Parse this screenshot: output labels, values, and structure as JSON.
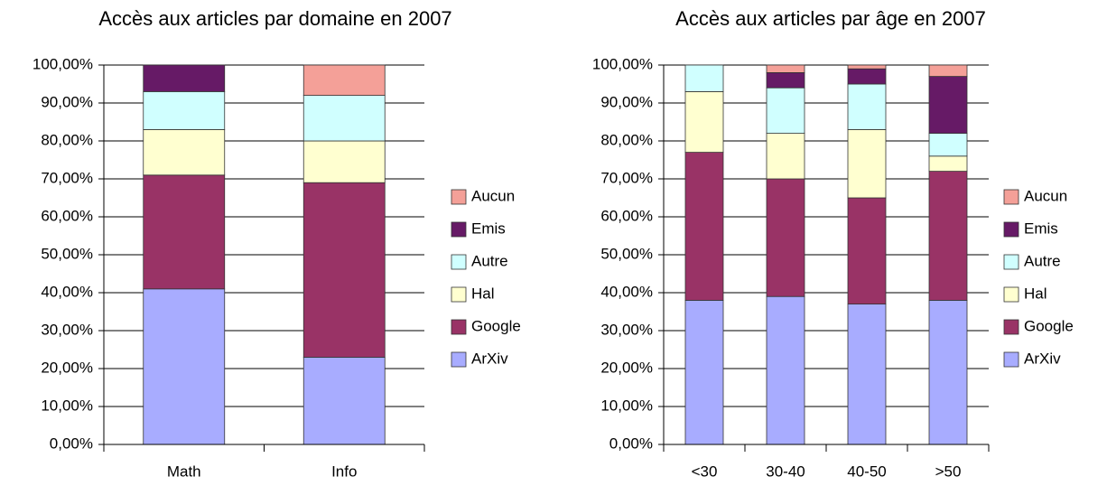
{
  "chart_data": [
    {
      "type": "bar",
      "stacked": true,
      "title": "Accès aux articles par domaine en 2007",
      "categories": [
        "Math",
        "Info"
      ],
      "series": [
        {
          "name": "ArXiv",
          "color": "#a8acff",
          "values": [
            41,
            23
          ]
        },
        {
          "name": "Google",
          "color": "#993366",
          "values": [
            30,
            46
          ]
        },
        {
          "name": "Hal",
          "color": "#ffffd0",
          "values": [
            12,
            11
          ]
        },
        {
          "name": "Autre",
          "color": "#d0ffff",
          "values": [
            10,
            12
          ]
        },
        {
          "name": "Emis",
          "color": "#661a66",
          "values": [
            7,
            0
          ]
        },
        {
          "name": "Aucun",
          "color": "#f4a098",
          "values": [
            0,
            8
          ]
        }
      ],
      "ylim": [
        0,
        100
      ],
      "yticks": [
        {
          "value": 0,
          "label": "0,00%"
        },
        {
          "value": 10,
          "label": "10,00%"
        },
        {
          "value": 20,
          "label": "20,00%"
        },
        {
          "value": 30,
          "label": "30,00%"
        },
        {
          "value": 40,
          "label": "40,00%"
        },
        {
          "value": 50,
          "label": "50,00%"
        },
        {
          "value": 60,
          "label": "60,00%"
        },
        {
          "value": 70,
          "label": "70,00%"
        },
        {
          "value": 80,
          "label": "80,00%"
        },
        {
          "value": 90,
          "label": "90,00%"
        },
        {
          "value": 100,
          "label": "100,00%"
        }
      ],
      "grid": true,
      "legend": "right"
    },
    {
      "type": "bar",
      "stacked": true,
      "title": "Accès aux articles par âge en 2007",
      "categories": [
        "<30",
        "30-40",
        "40-50",
        ">50"
      ],
      "series": [
        {
          "name": "ArXiv",
          "color": "#a8acff",
          "values": [
            38,
            39,
            37,
            38
          ]
        },
        {
          "name": "Google",
          "color": "#993366",
          "values": [
            39,
            31,
            28,
            34
          ]
        },
        {
          "name": "Hal",
          "color": "#ffffd0",
          "values": [
            16,
            12,
            18,
            4
          ]
        },
        {
          "name": "Autre",
          "color": "#d0ffff",
          "values": [
            7,
            12,
            12,
            6
          ]
        },
        {
          "name": "Emis",
          "color": "#661a66",
          "values": [
            0,
            4,
            4,
            15
          ]
        },
        {
          "name": "Aucun",
          "color": "#f4a098",
          "values": [
            0,
            2,
            1,
            3
          ]
        }
      ],
      "ylim": [
        0,
        100
      ],
      "yticks": [
        {
          "value": 0,
          "label": "0,00%"
        },
        {
          "value": 10,
          "label": "10,00%"
        },
        {
          "value": 20,
          "label": "20,00%"
        },
        {
          "value": 30,
          "label": "30,00%"
        },
        {
          "value": 40,
          "label": "40,00%"
        },
        {
          "value": 50,
          "label": "50,00%"
        },
        {
          "value": 60,
          "label": "60,00%"
        },
        {
          "value": 70,
          "label": "70,00%"
        },
        {
          "value": 80,
          "label": "80,00%"
        },
        {
          "value": 90,
          "label": "90,00%"
        },
        {
          "value": 100,
          "label": "100,00%"
        }
      ],
      "grid": true,
      "legend": "right"
    }
  ]
}
